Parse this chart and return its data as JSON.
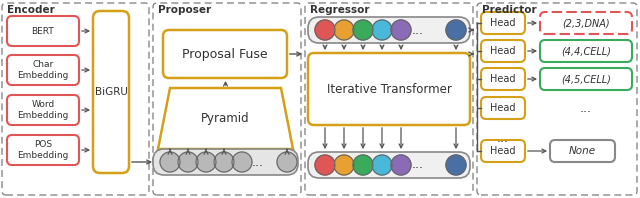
{
  "encoder_label": "Encoder",
  "proposer_label": "Proposer",
  "regressor_label": "Regressor",
  "predictor_label": "Predictor",
  "encoder_boxes": [
    "BERT",
    "Char\nEmbedding",
    "Word\nEmbedding",
    "POS\nEmbedding"
  ],
  "bigru_label": "BiGRU",
  "proposal_fuse_label": "Proposal Fuse",
  "pyramid_label": "Pyramid",
  "iterative_transformer_label": "Iterative Transformer",
  "head_label": "Head",
  "output_labels_top": [
    "(2,3,DNA)",
    "(4,4,CELL)",
    "(4,5,CELL)"
  ],
  "output_label_none": "None",
  "circle_colors": [
    "#e05555",
    "#e8a030",
    "#3aaa5c",
    "#4ab8d8",
    "#8b6bb5",
    "#4a6fa5"
  ],
  "circle_color_gray": "#b8b8b8",
  "box_color_red": "#e05555",
  "box_color_green": "#3aaa5c",
  "box_color_gold": "#d4a017",
  "bg_color": "#ffffff",
  "dashed_color": "#888888",
  "text_color": "#333333",
  "arrow_color": "#555555"
}
